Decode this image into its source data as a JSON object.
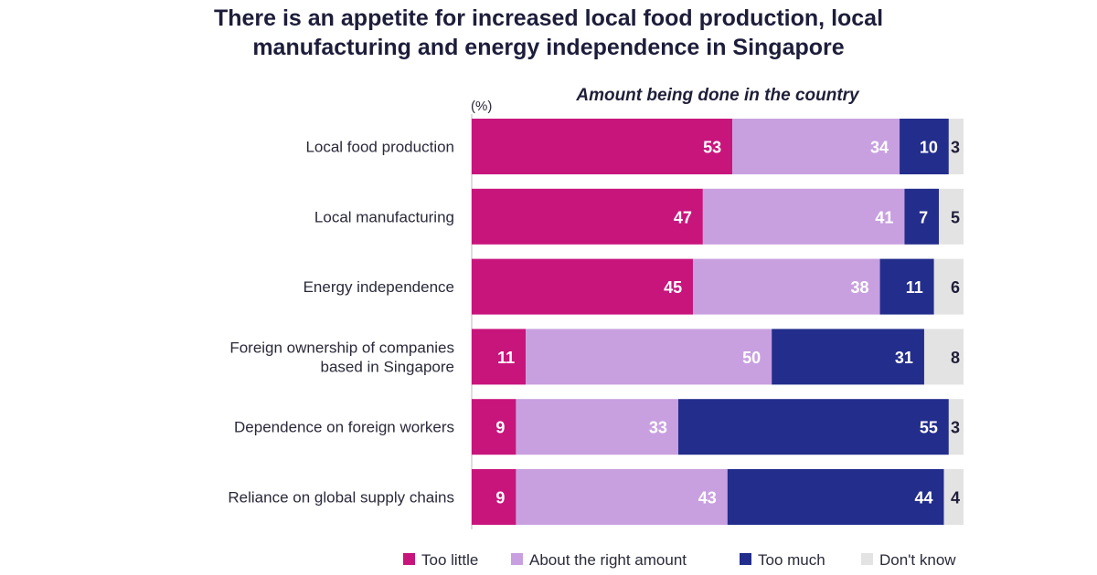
{
  "header": {
    "title_line1": "There is an appetite for increased local food production, local",
    "title_line2": "manufacturing and energy independence in Singapore"
  },
  "chart_data": {
    "type": "bar",
    "orientation": "horizontal",
    "stacked": true,
    "subtitle": "Amount being done in the country",
    "unit_label": "(%)",
    "categories": [
      [
        "Local food production"
      ],
      [
        "Local manufacturing"
      ],
      [
        "Energy independence"
      ],
      [
        "Foreign ownership of companies",
        "based in Singapore"
      ],
      [
        "Dependence on foreign workers"
      ],
      [
        "Reliance on global supply chains"
      ]
    ],
    "series": [
      {
        "name": "Too little",
        "color": "#c8157c",
        "label_color": "#ffffff",
        "values": [
          53,
          47,
          45,
          11,
          9,
          9
        ]
      },
      {
        "name": "About the right amount",
        "color": "#c8a0e0",
        "label_color": "#ffffff",
        "values": [
          34,
          41,
          38,
          50,
          33,
          43
        ]
      },
      {
        "name": "Too much",
        "color": "#232d8c",
        "label_color": "#ffffff",
        "values": [
          10,
          7,
          11,
          31,
          55,
          44
        ]
      },
      {
        "name": "Don't know",
        "color": "#e3e3e3",
        "label_color": "#1f1f3a",
        "values": [
          3,
          5,
          6,
          8,
          3,
          4
        ]
      }
    ],
    "xlim": [
      0,
      100
    ],
    "grid": false,
    "legend": "bottom"
  }
}
